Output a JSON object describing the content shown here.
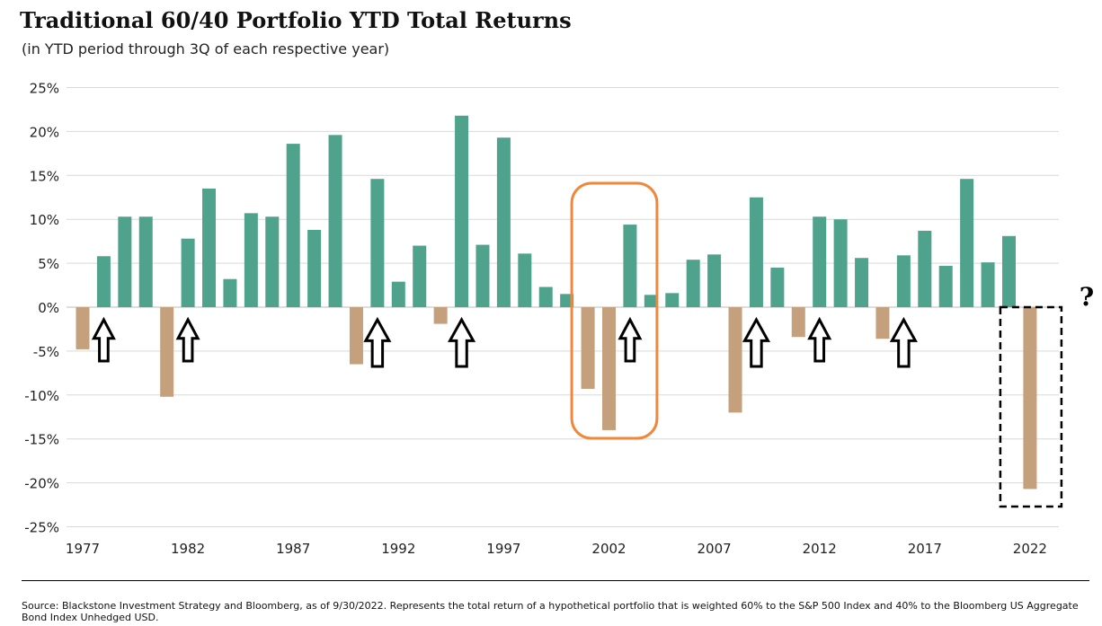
{
  "header": {
    "title": "Traditional 60/40 Portfolio YTD Total Returns",
    "subtitle": "(in YTD period through 3Q of each respective year)"
  },
  "footer": {
    "source": "Source: Blackstone Investment Strategy and Bloomberg, as of 9/30/2022. Represents the total return of a hypothetical portfolio that is weighted 60% to the S&P 500 Index and 40% to the Bloomberg US Aggregate Bond Index Unhedged USD."
  },
  "chart_data": {
    "type": "bar",
    "title": "Traditional 60/40 Portfolio YTD Total Returns",
    "subtitle": "(in YTD period through 3Q of each respective year)",
    "x": [
      1977,
      1978,
      1979,
      1980,
      1981,
      1982,
      1983,
      1984,
      1985,
      1986,
      1987,
      1988,
      1989,
      1990,
      1991,
      1992,
      1993,
      1994,
      1995,
      1996,
      1997,
      1998,
      1999,
      2000,
      2001,
      2002,
      2003,
      2004,
      2005,
      2006,
      2007,
      2008,
      2009,
      2010,
      2011,
      2012,
      2013,
      2014,
      2015,
      2016,
      2017,
      2018,
      2019,
      2020,
      2021,
      2022
    ],
    "values": [
      -4.8,
      5.8,
      10.3,
      10.3,
      -10.2,
      7.8,
      13.5,
      3.2,
      10.7,
      10.3,
      18.6,
      8.8,
      19.6,
      -6.5,
      14.6,
      2.9,
      7.0,
      -1.9,
      21.8,
      7.1,
      19.3,
      6.1,
      2.3,
      1.5,
      -9.3,
      -14.0,
      9.4,
      1.4,
      1.6,
      5.4,
      6.0,
      -12.0,
      12.5,
      4.5,
      -3.4,
      10.3,
      10.0,
      5.6,
      -3.6,
      5.9,
      8.7,
      4.7,
      14.6,
      5.1,
      8.1,
      -20.7
    ],
    "x_tick_labels": [
      "1977",
      "1982",
      "1987",
      "1992",
      "1997",
      "2002",
      "2007",
      "2012",
      "2017",
      "2022"
    ],
    "y_tick_labels": [
      "25%",
      "20%",
      "15%",
      "10%",
      "5%",
      "0%",
      "-5%",
      "-10%",
      "-15%",
      "-20%",
      "-25%"
    ],
    "ylim": [
      -25,
      25
    ],
    "y_ticks": [
      25,
      20,
      15,
      10,
      5,
      0,
      -5,
      -10,
      -15,
      -20,
      -25
    ],
    "grid": true,
    "colors": {
      "positive": "#4fa38c",
      "negative": "#c4a07c",
      "highlight_box": "#f0873a",
      "dashed_box": "#000000",
      "grid": "#d9d9d9"
    },
    "annotations": {
      "up_arrow_years": [
        1978,
        1982,
        1991,
        1995,
        2003,
        2009,
        2012,
        2016
      ],
      "highlight_box_years": [
        2001,
        2003
      ],
      "dashed_box_year": 2022,
      "question_mark": "?"
    }
  }
}
